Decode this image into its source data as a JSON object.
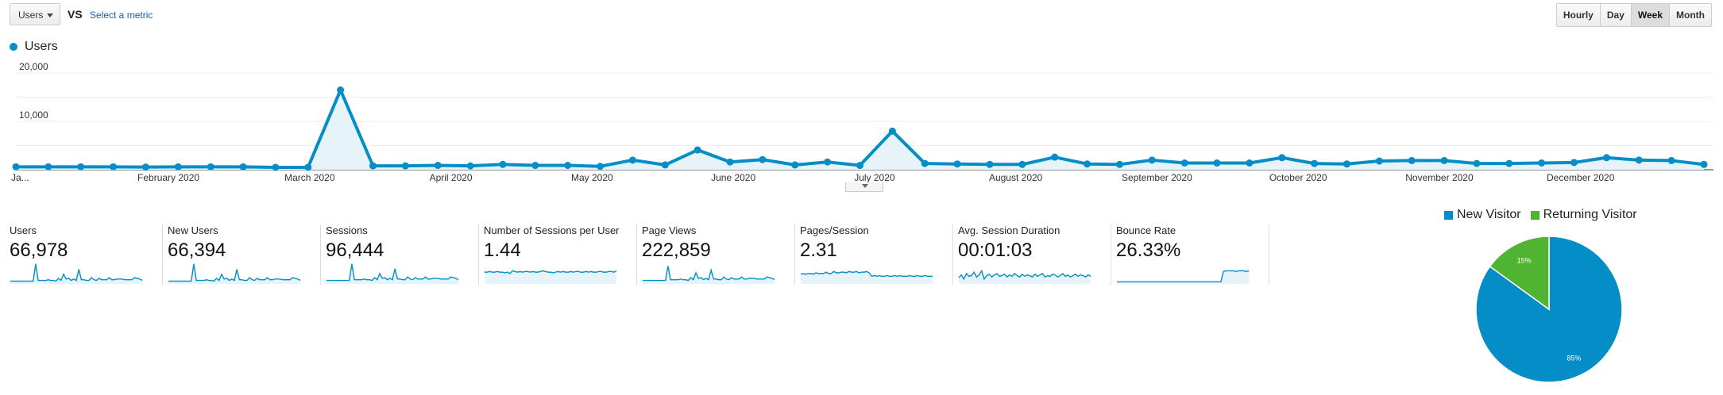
{
  "toolbar": {
    "metric_select": "Users",
    "vs_label": "VS",
    "select_metric_link": "Select a metric",
    "periods": [
      "Hourly",
      "Day",
      "Week",
      "Month"
    ],
    "active_period": "Week"
  },
  "chart_data": [
    {
      "type": "area",
      "series": [
        {
          "name": "Users",
          "color": "#058dc7",
          "values": [
            600,
            600,
            600,
            600,
            550,
            600,
            600,
            600,
            500,
            500,
            16500,
            800,
            800,
            900,
            800,
            1100,
            900,
            900,
            700,
            2000,
            1000,
            4100,
            1600,
            2100,
            1000,
            1600,
            900,
            8000,
            1300,
            1200,
            1100,
            1100,
            2600,
            1200,
            1100,
            2000,
            1400,
            1400,
            1400,
            2500,
            1300,
            1200,
            1800,
            1900,
            1900,
            1300,
            1300,
            1400,
            1500,
            2500,
            2000,
            1900,
            1100
          ]
        }
      ],
      "x_labels": [
        "Ja...",
        "February 2020",
        "March 2020",
        "April 2020",
        "May 2020",
        "June 2020",
        "July 2020",
        "August 2020",
        "September 2020",
        "October 2020",
        "November 2020",
        "December 2020"
      ],
      "y_ticks": [
        "20,000",
        "10,000"
      ],
      "ylim": [
        0,
        22000
      ],
      "grid": true,
      "legend": "top-left"
    },
    {
      "type": "pie",
      "slices": [
        {
          "label": "New Visitor",
          "value": 85,
          "color": "#058dc7",
          "text": "85%"
        },
        {
          "label": "Returning Visitor",
          "value": 15,
          "color": "#50b432",
          "text": "15%"
        }
      ],
      "legend": "top"
    }
  ],
  "metrics": [
    {
      "name": "Users",
      "value": "66,978",
      "spark": [
        3,
        3,
        3,
        3,
        3,
        3,
        3,
        3,
        3,
        3,
        28,
        4,
        4,
        4,
        4,
        5,
        4,
        4,
        3,
        7,
        4,
        13,
        6,
        7,
        4,
        6,
        4,
        20,
        5,
        5,
        4,
        4,
        8,
        5,
        4,
        7,
        5,
        5,
        5,
        8,
        5,
        5,
        6,
        6,
        6,
        5,
        5,
        5,
        5,
        8,
        7,
        6,
        4
      ]
    },
    {
      "name": "New Users",
      "value": "66,394",
      "spark": [
        3,
        3,
        3,
        3,
        3,
        3,
        3,
        3,
        3,
        3,
        28,
        4,
        4,
        4,
        4,
        5,
        4,
        4,
        3,
        7,
        4,
        13,
        6,
        7,
        4,
        6,
        4,
        20,
        5,
        5,
        4,
        4,
        8,
        5,
        4,
        7,
        5,
        5,
        5,
        8,
        5,
        5,
        6,
        6,
        6,
        5,
        5,
        5,
        5,
        8,
        7,
        6,
        4
      ]
    },
    {
      "name": "Sessions",
      "value": "96,444",
      "spark": [
        4,
        4,
        4,
        4,
        4,
        4,
        4,
        4,
        4,
        4,
        28,
        5,
        5,
        5,
        5,
        6,
        5,
        5,
        4,
        8,
        5,
        14,
        7,
        8,
        5,
        7,
        5,
        21,
        6,
        6,
        5,
        5,
        9,
        6,
        5,
        8,
        6,
        6,
        6,
        9,
        6,
        6,
        7,
        7,
        7,
        6,
        6,
        6,
        6,
        9,
        8,
        7,
        5
      ]
    },
    {
      "name": "Number of Sessions per User",
      "value": "1.44",
      "spark": [
        16,
        16,
        17,
        16,
        16,
        17,
        16,
        16,
        15,
        16,
        14,
        18,
        17,
        16,
        17,
        16,
        17,
        17,
        16,
        17,
        16,
        16,
        17,
        18,
        17,
        16,
        16,
        15,
        16,
        17,
        16,
        17,
        16,
        16,
        17,
        16,
        17,
        17,
        16,
        16,
        17,
        16,
        17,
        16,
        16,
        17,
        17,
        16,
        16,
        17,
        17,
        16,
        18
      ]
    },
    {
      "name": "Page Views",
      "value": "222,859",
      "spark": [
        4,
        4,
        4,
        4,
        4,
        4,
        4,
        4,
        4,
        4,
        25,
        5,
        5,
        5,
        5,
        6,
        5,
        5,
        4,
        8,
        5,
        15,
        7,
        8,
        5,
        7,
        5,
        19,
        6,
        6,
        5,
        5,
        9,
        6,
        5,
        8,
        6,
        6,
        6,
        9,
        6,
        6,
        7,
        7,
        7,
        6,
        6,
        6,
        6,
        9,
        8,
        7,
        5
      ]
    },
    {
      "name": "Pages/Session",
      "value": "2.31",
      "spark": [
        13,
        14,
        13,
        14,
        14,
        13,
        15,
        14,
        14,
        14,
        16,
        14,
        14,
        17,
        15,
        15,
        16,
        16,
        15,
        17,
        16,
        16,
        17,
        15,
        16,
        16,
        17,
        15,
        10,
        11,
        10,
        11,
        10,
        10,
        11,
        10,
        10,
        11,
        10,
        11,
        10,
        10,
        10,
        11,
        10,
        10,
        11,
        10,
        10,
        11,
        10,
        10,
        10
      ]
    },
    {
      "name": "Avg. Session Duration",
      "value": "00:01:03",
      "spark": [
        8,
        12,
        6,
        14,
        10,
        11,
        16,
        9,
        12,
        18,
        6,
        11,
        13,
        9,
        12,
        14,
        10,
        11,
        13,
        9,
        12,
        10,
        14,
        11,
        9,
        13,
        10,
        12,
        11,
        9,
        13,
        10,
        12,
        14,
        9,
        11,
        10,
        13,
        12,
        9,
        11,
        14,
        10,
        12,
        9,
        11,
        13,
        10,
        12,
        11,
        9,
        12,
        10
      ]
    },
    {
      "name": "Bounce Rate",
      "value": "26.33%",
      "spark": [
        2,
        2,
        2,
        2,
        2,
        2,
        2,
        2,
        2,
        2,
        2,
        2,
        2,
        2,
        2,
        2,
        2,
        2,
        2,
        2,
        2,
        2,
        2,
        2,
        2,
        2,
        2,
        2,
        2,
        2,
        2,
        2,
        2,
        2,
        2,
        2,
        2,
        2,
        2,
        2,
        2,
        2,
        17,
        18,
        18,
        18,
        18,
        17,
        18,
        18,
        18,
        17,
        18
      ]
    }
  ]
}
